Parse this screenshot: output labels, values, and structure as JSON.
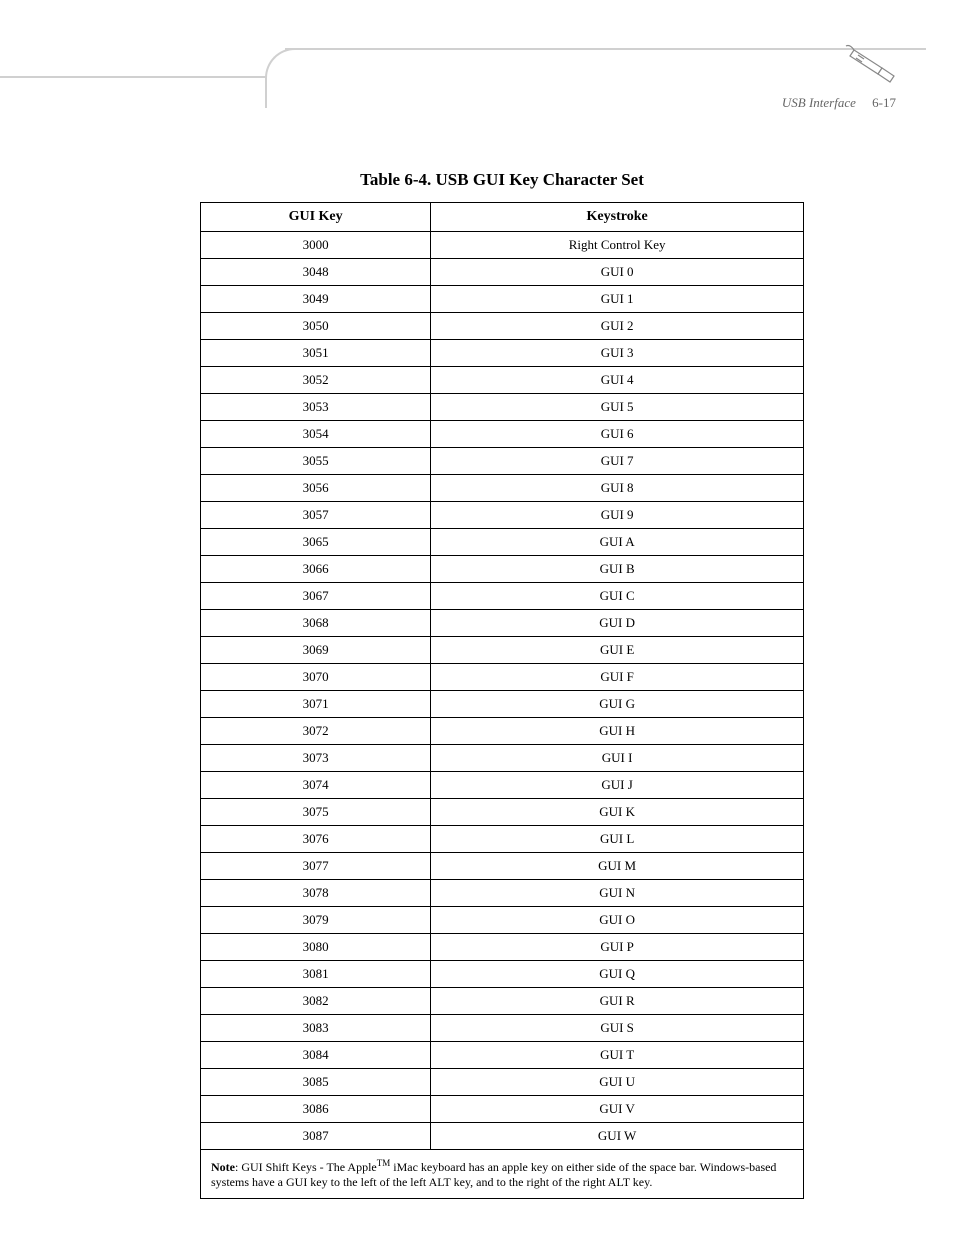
{
  "header": {
    "section_title": "USB Interface",
    "page_number": "6-17"
  },
  "table": {
    "title": "Table 6-4. USB GUI Key Character Set",
    "columns": [
      "GUI Key",
      "Keystroke"
    ],
    "rows": [
      [
        "3000",
        "Right Control Key"
      ],
      [
        "3048",
        "GUI 0"
      ],
      [
        "3049",
        "GUI 1"
      ],
      [
        "3050",
        "GUI 2"
      ],
      [
        "3051",
        "GUI 3"
      ],
      [
        "3052",
        "GUI 4"
      ],
      [
        "3053",
        "GUI 5"
      ],
      [
        "3054",
        "GUI 6"
      ],
      [
        "3055",
        "GUI 7"
      ],
      [
        "3056",
        "GUI 8"
      ],
      [
        "3057",
        "GUI 9"
      ],
      [
        "3065",
        "GUI A"
      ],
      [
        "3066",
        "GUI B"
      ],
      [
        "3067",
        "GUI C"
      ],
      [
        "3068",
        "GUI D"
      ],
      [
        "3069",
        "GUI E"
      ],
      [
        "3070",
        "GUI F"
      ],
      [
        "3071",
        "GUI G"
      ],
      [
        "3072",
        "GUI H"
      ],
      [
        "3073",
        "GUI I"
      ],
      [
        "3074",
        "GUI J"
      ],
      [
        "3075",
        "GUI K"
      ],
      [
        "3076",
        "GUI L"
      ],
      [
        "3077",
        "GUI M"
      ],
      [
        "3078",
        "GUI N"
      ],
      [
        "3079",
        "GUI O"
      ],
      [
        "3080",
        "GUI P"
      ],
      [
        "3081",
        "GUI Q"
      ],
      [
        "3082",
        "GUI R"
      ],
      [
        "3083",
        "GUI S"
      ],
      [
        "3084",
        "GUI T"
      ],
      [
        "3085",
        "GUI U"
      ],
      [
        "3086",
        "GUI V"
      ],
      [
        "3087",
        "GUI W"
      ]
    ],
    "note_label": "Note",
    "note_text_1": ": GUI Shift Keys - The Apple",
    "note_tm": "TM",
    "note_text_2": " iMac keyboard has an apple key on either side of the space bar. Windows-based systems have a GUI key to the left of the left ALT key, and to the right of the right ALT key."
  },
  "colors": {
    "border": "#000000",
    "header_line": "#d0d0d0",
    "header_text": "#666666",
    "background": "#ffffff"
  }
}
